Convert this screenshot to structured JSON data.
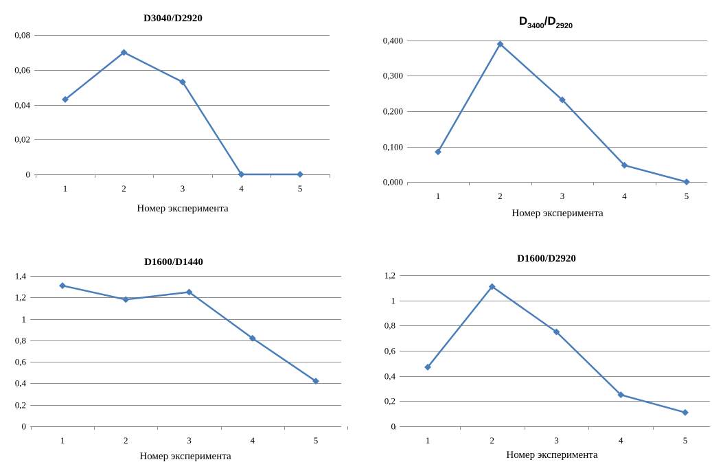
{
  "chart_data": [
    {
      "type": "line",
      "title": "D3040/D2920",
      "xlabel": "Номер эксперимента",
      "ylabel": "",
      "categories": [
        "1",
        "2",
        "3",
        "4",
        "5"
      ],
      "values": [
        0.043,
        0.07,
        0.053,
        0,
        0
      ],
      "ylim": [
        0,
        0.08
      ],
      "yticks": [
        "0",
        "0,02",
        "0,04",
        "0,06",
        "0,08"
      ],
      "grid": true,
      "color": "#4a7ebb"
    },
    {
      "type": "line",
      "title": "D3400/D2920",
      "title_parts": {
        "d1": "D",
        "sub1": "3400",
        "slash": "/",
        "d2": "D",
        "sub2": "2920"
      },
      "xlabel": "Номер эксперимента",
      "ylabel": "",
      "categories": [
        "1",
        "2",
        "3",
        "4",
        "5"
      ],
      "values": [
        0.085,
        0.39,
        0.232,
        0.047,
        0
      ],
      "ylim": [
        0,
        0.4
      ],
      "yticks": [
        "0,000",
        "0,100",
        "0,200",
        "0,300",
        "0,400"
      ],
      "grid": true,
      "color": "#4a7ebb"
    },
    {
      "type": "line",
      "title": "D1600/D1440",
      "xlabel": "Номер эксперимента",
      "ylabel": "",
      "categories": [
        "1",
        "2",
        "3",
        "4",
        "5"
      ],
      "values": [
        1.31,
        1.18,
        1.25,
        0.82,
        0.42
      ],
      "ylim": [
        0,
        1.4
      ],
      "yticks": [
        "0",
        "0,2",
        "0,4",
        "0,6",
        "0,8",
        "1",
        "1,2",
        "1,4"
      ],
      "grid": true,
      "color": "#4a7ebb"
    },
    {
      "type": "line",
      "title": "D1600/D2920",
      "xlabel": "Номер эксперимента",
      "ylabel": "",
      "categories": [
        "1",
        "2",
        "3",
        "4",
        "5"
      ],
      "values": [
        0.47,
        1.11,
        0.75,
        0.25,
        0.11
      ],
      "ylim": [
        0,
        1.2
      ],
      "yticks": [
        "0",
        "0,2",
        "0,4",
        "0,6",
        "0,8",
        "1",
        "1,2"
      ],
      "grid": true,
      "color": "#4a7ebb"
    }
  ]
}
